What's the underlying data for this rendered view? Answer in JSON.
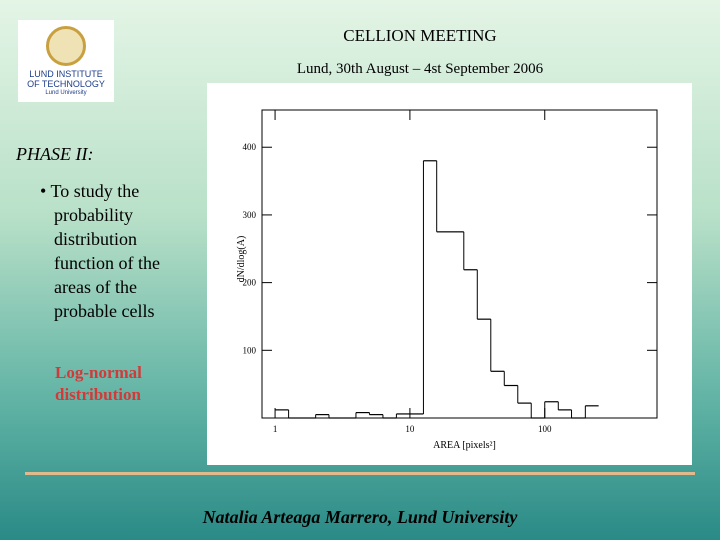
{
  "header": {
    "title": "CELLION MEETING",
    "subtitle": "Lund, 30th August – 4st September 2006"
  },
  "logo": {
    "line1": "LUND INSTITUTE",
    "line2": "OF TECHNOLOGY",
    "line3": "Lund University"
  },
  "body": {
    "heading": "PHASE II:",
    "bullet": "• To study the probability distribution function of the areas of the probable cells",
    "note": "Log-normal distribution"
  },
  "footer": "Natalia Arteaga Marrero, Lund University",
  "chart_data": {
    "type": "histogram",
    "xlabel": "AREA [pixels²]",
    "ylabel": "dN/dlog(A)",
    "bins": [
      1,
      1.26,
      1.58,
      2,
      2.51,
      3.16,
      3.98,
      5.01,
      6.31,
      7.94,
      10,
      12.6,
      15.8,
      20,
      25.1,
      31.6,
      39.8,
      50.1,
      63.1,
      79.4,
      100,
      126,
      158,
      200,
      251
    ],
    "values": [
      12,
      0,
      0,
      5,
      0,
      0,
      8,
      5,
      0,
      6,
      6,
      380,
      275,
      275,
      219,
      146,
      69,
      48,
      22,
      0,
      24,
      12,
      0,
      18
    ],
    "color": "#000000",
    "log_x": true,
    "xlim": [
      0.8,
      680
    ],
    "xticks": [
      1,
      10,
      100
    ],
    "ylim": [
      0,
      455
    ],
    "yticks": [
      100,
      200,
      300,
      400
    ]
  }
}
